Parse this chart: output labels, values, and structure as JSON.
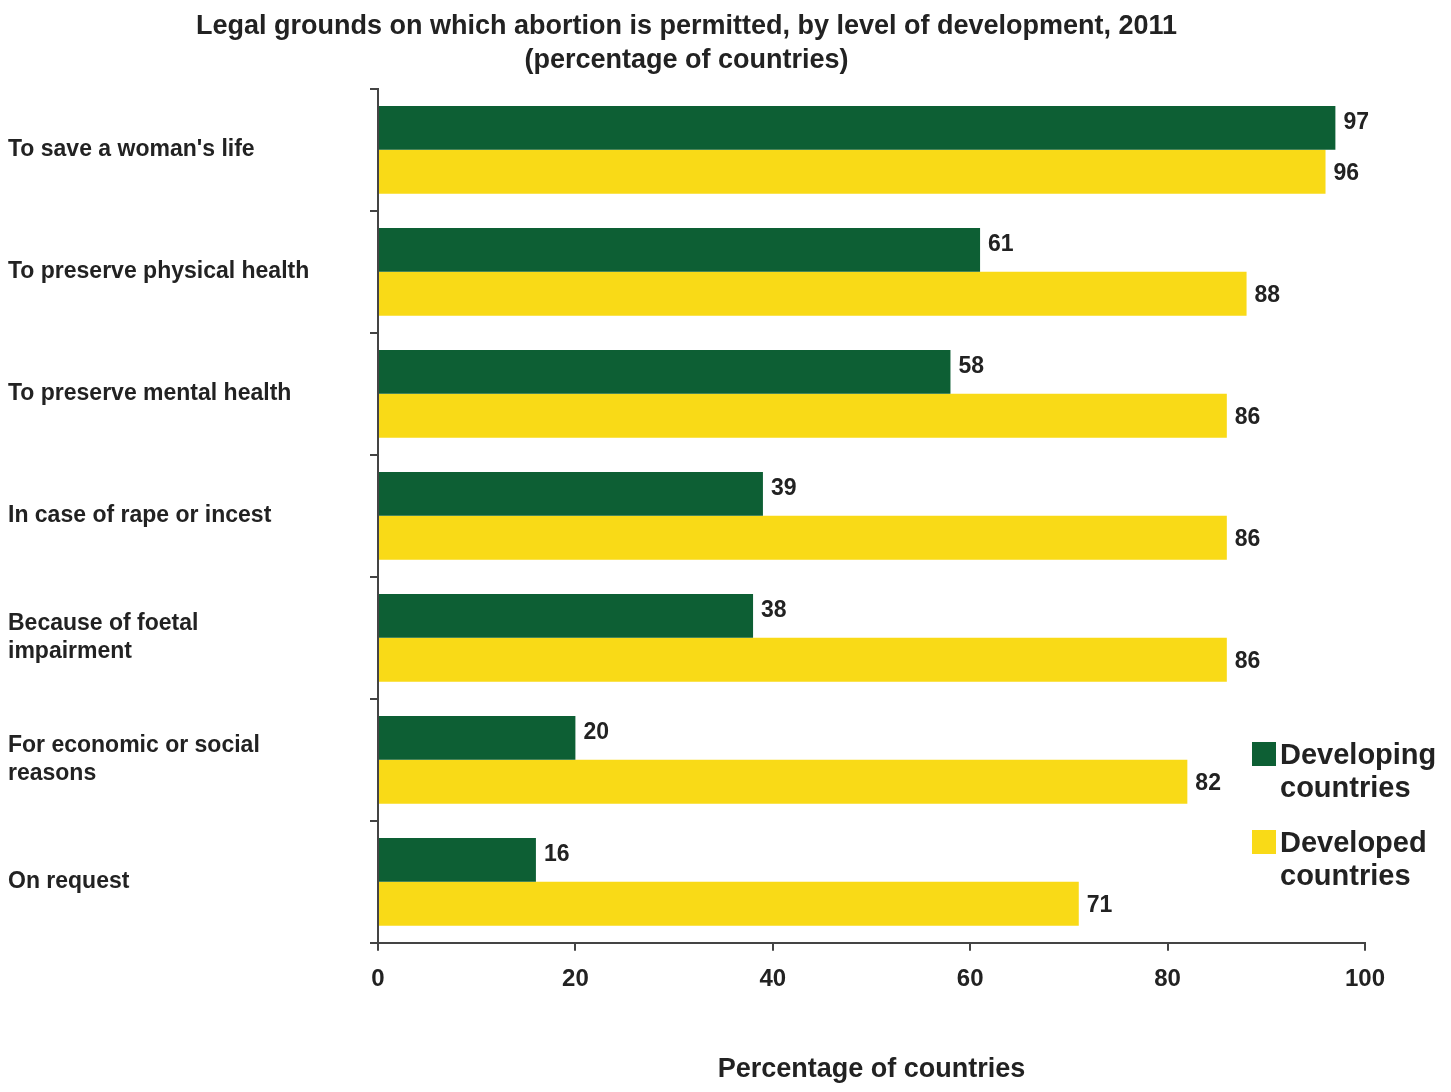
{
  "chart_data": {
    "type": "bar",
    "orientation": "horizontal",
    "title": "Legal grounds on which abortion is permitted, by level of development, 2011",
    "subtitle": "(percentage of countries)",
    "xlabel": "Percentage of countries",
    "categories": [
      "To save a woman's life",
      "To preserve physical health",
      "To preserve mental health",
      "In case of rape or incest",
      "Because of foetal impairment",
      "For economic or social reasons",
      "On request"
    ],
    "series": [
      {
        "name": "Developing countries",
        "color": "#0d5f34",
        "values": [
          97,
          61,
          58,
          39,
          38,
          20,
          16
        ]
      },
      {
        "name": "Developed countries",
        "color": "#f9da17",
        "values": [
          96,
          88,
          86,
          86,
          86,
          82,
          71
        ]
      }
    ],
    "xlim": [
      0,
      100
    ],
    "xticks": [
      0,
      20,
      40,
      60,
      80,
      100
    ],
    "data_labels": true,
    "grid": false,
    "legend": "bottom right"
  }
}
